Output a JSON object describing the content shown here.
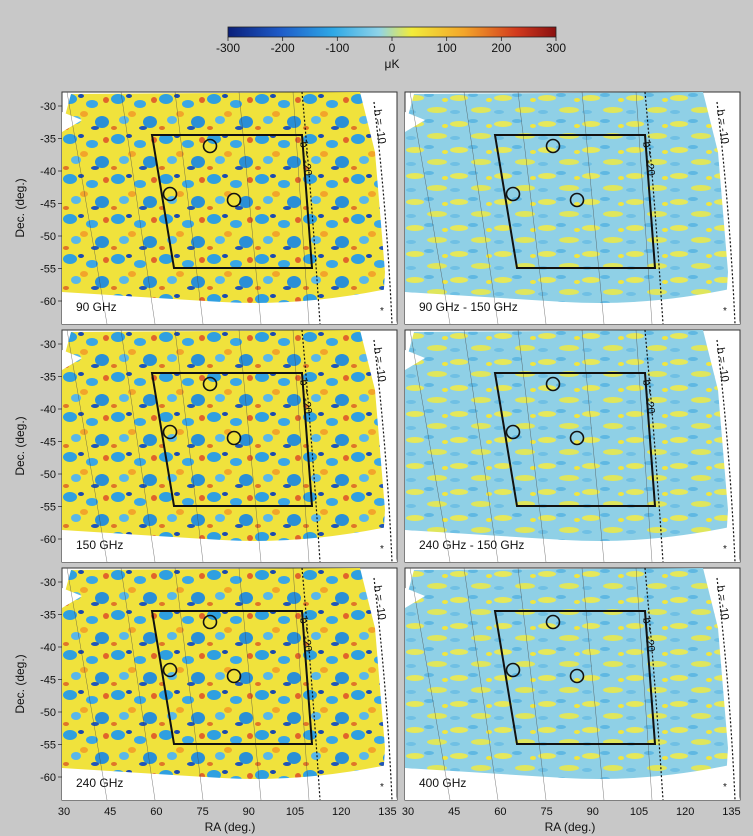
{
  "colorbar": {
    "ticks": [
      "-300",
      "-200",
      "-100",
      "0",
      "100",
      "200",
      "300"
    ],
    "unit": "μK",
    "colors": [
      "#0a1f7a",
      "#1e5bc8",
      "#2ea8e6",
      "#8fd3e8",
      "#f2ec3a",
      "#f3a52a",
      "#d23a1e",
      "#8a1010"
    ]
  },
  "axes": {
    "ylabel": "Dec. (deg.)",
    "xlabel": "RA (deg.)",
    "yticks": [
      "-30",
      "-35",
      "-40",
      "-45",
      "-50",
      "-55",
      "-60"
    ],
    "xticks_left": [
      "30",
      "45",
      "60",
      "75",
      "90",
      "105",
      "120",
      "135"
    ],
    "xticks_right": [
      "30",
      "45",
      "60",
      "75",
      "90",
      "105",
      "120",
      "135"
    ]
  },
  "panels": [
    {
      "label": "90 GHz",
      "style": "high",
      "contour1": "b = -20",
      "contour2": "b = -10"
    },
    {
      "label": "90 GHz - 150 GHz",
      "style": "low",
      "contour1": "b = -20",
      "contour2": "b = -10"
    },
    {
      "label": "150 GHz",
      "style": "high",
      "contour1": "b = -20",
      "contour2": "b = -10"
    },
    {
      "label": "240 GHz - 150 GHz",
      "style": "low",
      "contour1": "b = -20",
      "contour2": "b = -10"
    },
    {
      "label": "240 GHz",
      "style": "high",
      "contour1": "b = -20",
      "contour2": "b = -10"
    },
    {
      "label": "400 GHz",
      "style": "low",
      "contour1": "b = -20",
      "contour2": "b = -10"
    }
  ]
}
